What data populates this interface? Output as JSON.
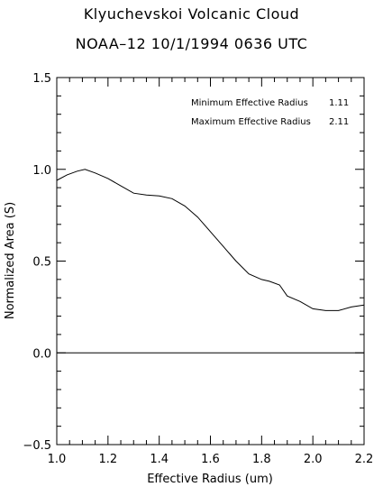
{
  "chart_data": {
    "type": "line",
    "title": "Klyuchevskoi Volcanic Cloud",
    "subtitle": "NOAA–12  10/1/1994  0636 UTC",
    "xlabel": "Effective Radius (um)",
    "ylabel": "Normalized Area (S)",
    "xlim": [
      1.0,
      2.2
    ],
    "ylim": [
      -0.5,
      1.5
    ],
    "xticks": [
      "1.0",
      "1.2",
      "1.4",
      "1.6",
      "1.8",
      "2.0",
      "2.2"
    ],
    "yticks": [
      "−0.5",
      "0.0",
      "0.5",
      "1.0",
      "1.5"
    ],
    "grid": false,
    "annotations": [
      {
        "label": "Minimum Effective Radius",
        "value": "1.11"
      },
      {
        "label": "Maximum Effective Radius",
        "value": "2.11"
      }
    ],
    "series": [
      {
        "x": [
          1.0,
          1.04,
          1.08,
          1.11,
          1.15,
          1.2,
          1.25,
          1.3,
          1.35,
          1.4,
          1.45,
          1.5,
          1.55,
          1.6,
          1.65,
          1.7,
          1.75,
          1.8,
          1.83,
          1.87,
          1.9,
          1.95,
          2.0,
          2.05,
          2.1,
          2.15,
          2.2
        ],
        "y": [
          0.94,
          0.97,
          0.99,
          1.0,
          0.98,
          0.95,
          0.91,
          0.87,
          0.86,
          0.855,
          0.84,
          0.8,
          0.74,
          0.66,
          0.58,
          0.5,
          0.43,
          0.4,
          0.39,
          0.37,
          0.31,
          0.28,
          0.24,
          0.23,
          0.23,
          0.25,
          0.26
        ]
      }
    ],
    "zero_line": 0.0
  }
}
